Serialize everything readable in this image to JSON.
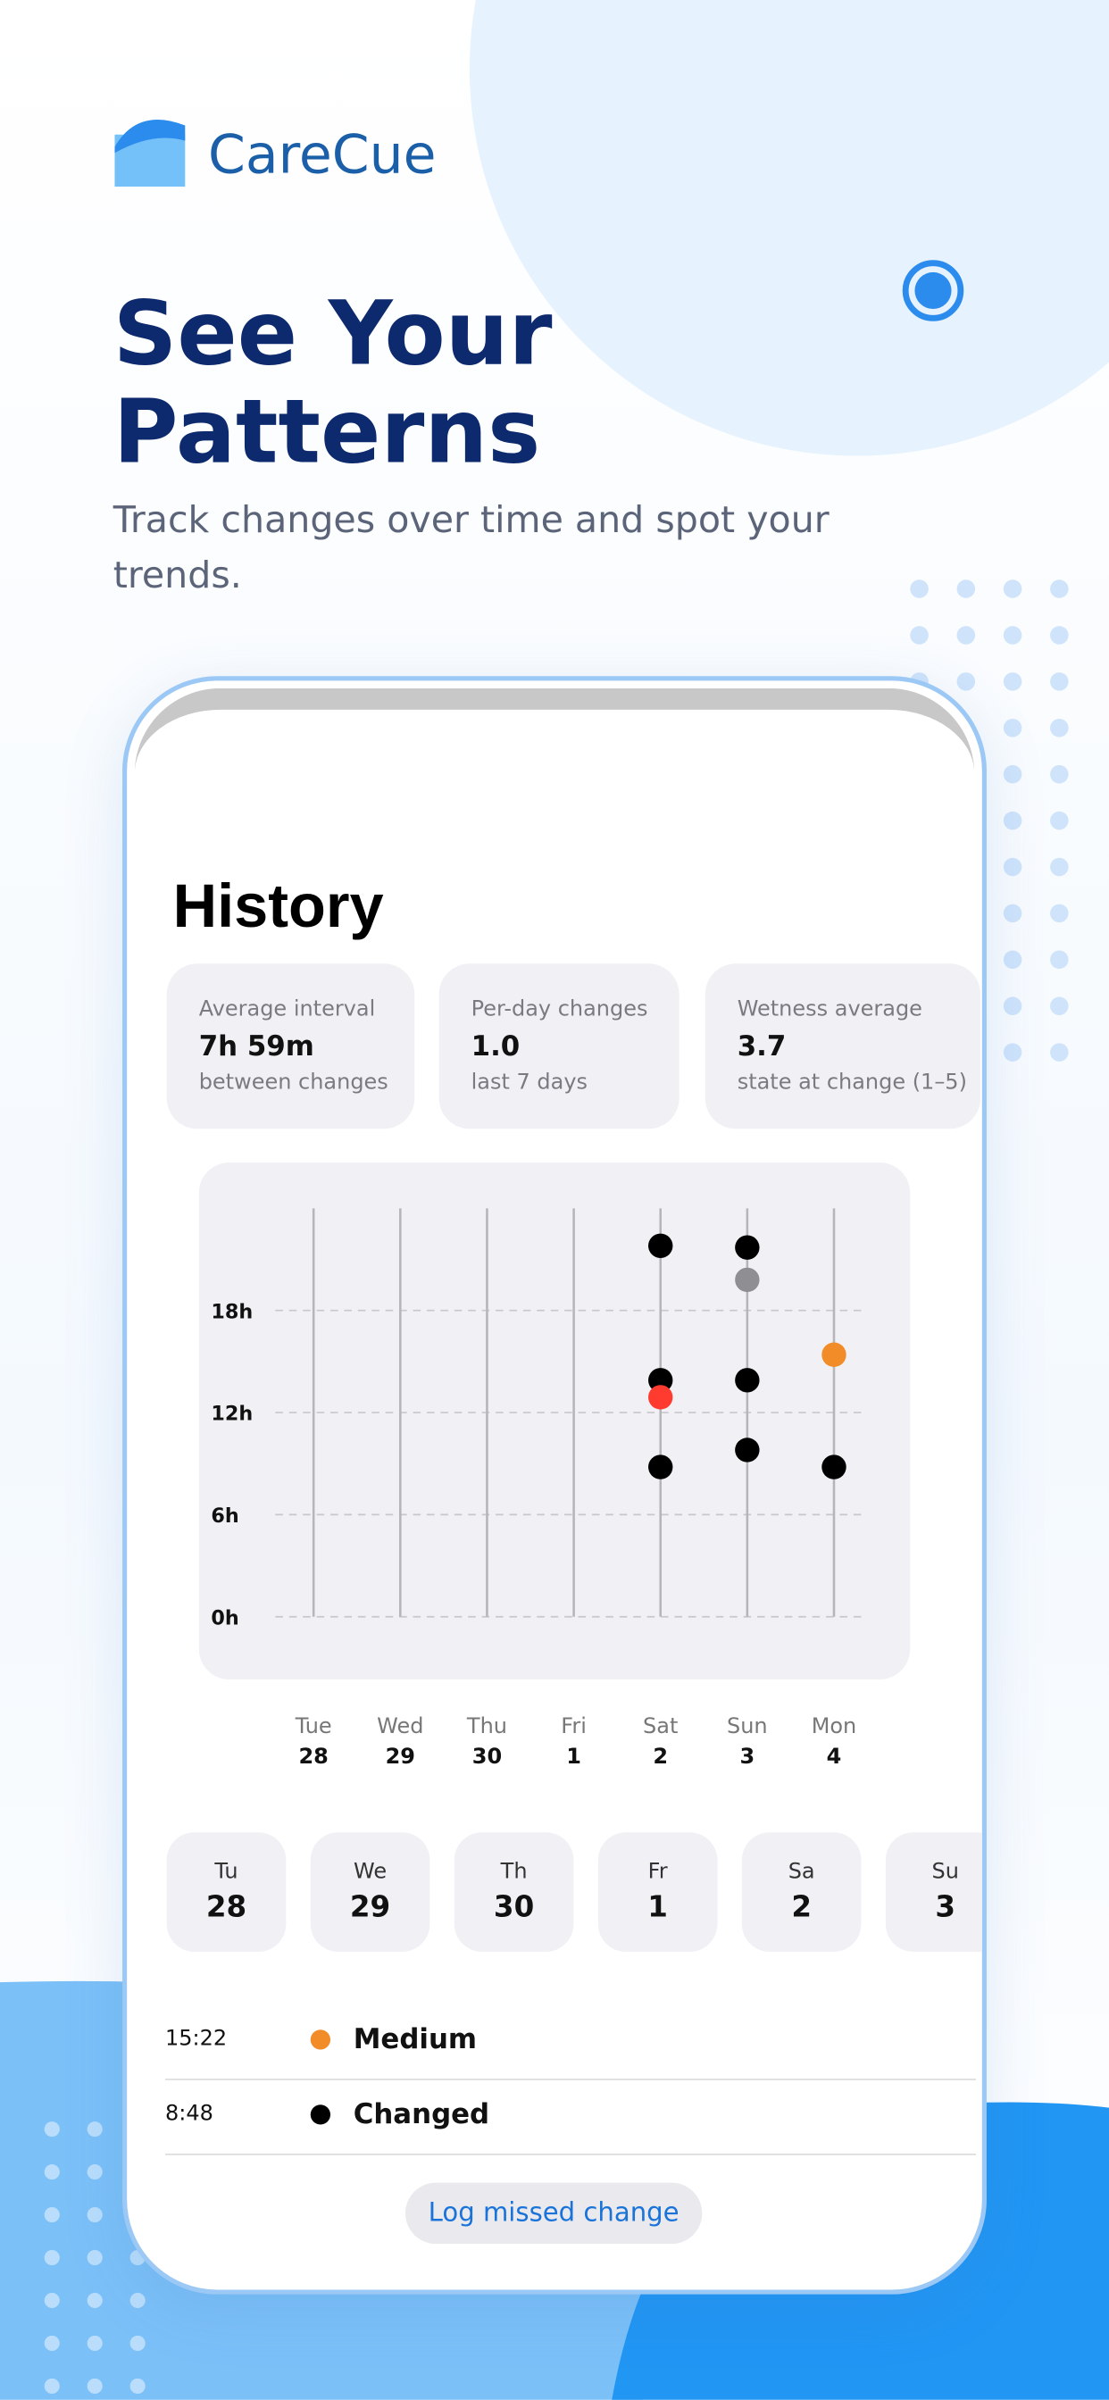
{
  "brand": "CareCue",
  "headline": "See Your Patterns",
  "subtitle": "Track changes over time and spot your trends.",
  "screen": {
    "title": "History",
    "stats": [
      {
        "label": "Average interval",
        "value": "7h 59m",
        "note": "between changes"
      },
      {
        "label": "Per-day changes",
        "value": "1.0",
        "note": "last 7 days"
      },
      {
        "label": "Wetness average",
        "value": "3.7",
        "note": "state at change (1–5)"
      }
    ],
    "chart_data": {
      "type": "scatter",
      "categories": [
        "Tue",
        "Wed",
        "Thu",
        "Fri",
        "Sat",
        "Sun",
        "Mon"
      ],
      "dates": [
        "28",
        "29",
        "30",
        "1",
        "2",
        "3",
        "4"
      ],
      "ylim": [
        0,
        24
      ],
      "yticks": [
        {
          "value": 0,
          "label": "0h"
        },
        {
          "value": 6,
          "label": "6h"
        },
        {
          "value": 12,
          "label": "12h"
        },
        {
          "value": 18,
          "label": "18h"
        }
      ],
      "grid": true,
      "series": [
        {
          "color": "#000000",
          "x": [
            "Sat",
            "Sat",
            "Sat",
            "Sun",
            "Sun",
            "Sun",
            "Mon"
          ],
          "values": [
            21.8,
            13.9,
            8.8,
            21.7,
            13.9,
            9.8,
            8.8
          ]
        },
        {
          "color": "#8e8e93",
          "x": [
            "Sun"
          ],
          "values": [
            19.8
          ]
        },
        {
          "color": "#ff3b30",
          "x": [
            "Sat"
          ],
          "values": [
            12.9
          ]
        },
        {
          "color": "#f28c28",
          "x": [
            "Mon"
          ],
          "values": [
            15.4
          ]
        }
      ]
    },
    "day_pills": [
      {
        "day": "Tu",
        "date": "28"
      },
      {
        "day": "We",
        "date": "29"
      },
      {
        "day": "Th",
        "date": "30"
      },
      {
        "day": "Fr",
        "date": "1"
      },
      {
        "day": "Sa",
        "date": "2"
      },
      {
        "day": "Su",
        "date": "3"
      }
    ],
    "entries": [
      {
        "time": "15:22",
        "color": "#f28c28",
        "label": "Medium"
      },
      {
        "time": "8:48",
        "color": "#000000",
        "label": "Changed"
      }
    ],
    "button": "Log missed change"
  }
}
